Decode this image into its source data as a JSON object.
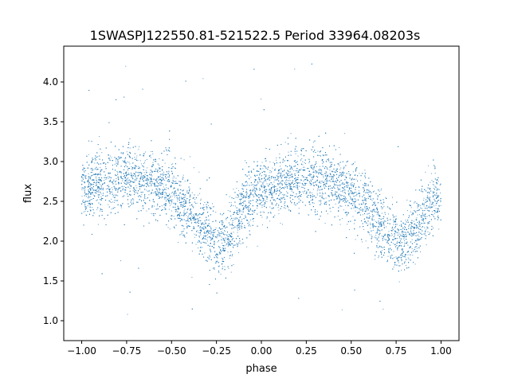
{
  "chart_data": {
    "type": "scatter",
    "title": "1SWASPJ122550.81-521522.5 Period 33964.08203s",
    "xlabel": "phase",
    "ylabel": "flux",
    "xlim": [
      -1.1,
      1.1
    ],
    "ylim": [
      0.75,
      4.45
    ],
    "x_ticks": [
      -1.0,
      -0.75,
      -0.5,
      -0.25,
      0.0,
      0.25,
      0.5,
      0.75,
      1.0
    ],
    "x_tick_labels": [
      "−1.00",
      "−0.75",
      "−0.50",
      "−0.25",
      "0.00",
      "0.25",
      "0.50",
      "0.75",
      "1.00"
    ],
    "y_ticks": [
      1.0,
      1.5,
      2.0,
      2.5,
      3.0,
      3.5,
      4.0
    ],
    "y_tick_labels": [
      "1.0",
      "1.5",
      "2.0",
      "2.5",
      "3.0",
      "3.5",
      "4.0"
    ],
    "grid": false,
    "legend": "none",
    "marker_color": "#1f77b4",
    "series": [
      {
        "phase_flux_trend": {
          "x": [
            -1.0,
            -0.9,
            -0.8,
            -0.7,
            -0.6,
            -0.5,
            -0.4,
            -0.3,
            -0.25,
            -0.2,
            -0.15,
            -0.1,
            0.0,
            0.1,
            0.2,
            0.3,
            0.4,
            0.5,
            0.6,
            0.7,
            0.75,
            0.8,
            0.85,
            0.9,
            1.0
          ],
          "y": [
            2.65,
            2.72,
            2.78,
            2.8,
            2.75,
            2.6,
            2.4,
            2.1,
            1.98,
            1.98,
            2.2,
            2.45,
            2.65,
            2.72,
            2.78,
            2.8,
            2.72,
            2.6,
            2.4,
            2.1,
            1.98,
            1.98,
            2.15,
            2.35,
            2.6
          ]
        },
        "scatter_spread": 0.2,
        "approx_points": 9000,
        "outlier_range": [
          0.9,
          4.25
        ]
      }
    ]
  }
}
